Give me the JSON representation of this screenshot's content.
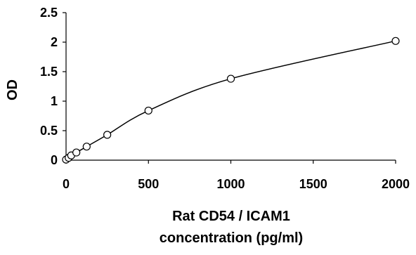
{
  "chart_data": {
    "type": "scatter",
    "title": "",
    "ylabel": "OD",
    "xlabel_lines": [
      "Rat CD54 / ICAM1",
      "concentration (pg/ml)"
    ],
    "xlim": [
      0,
      2000
    ],
    "ylim": [
      0,
      2.5
    ],
    "x_ticks": [
      0,
      500,
      1000,
      1500,
      2000
    ],
    "x_tick_labels": [
      "0",
      "500",
      "1000",
      "1500",
      "2000"
    ],
    "y_ticks": [
      0,
      0.5,
      1,
      1.5,
      2,
      2.5
    ],
    "y_tick_labels": [
      "0",
      "0.5",
      "1",
      "1.5",
      "2",
      "2.5"
    ],
    "grid": false,
    "legend": "none",
    "marker": "open-circle",
    "fit": "smooth-curve",
    "color": "#000000",
    "series": [
      {
        "x": [
          0,
          15.6,
          31.25,
          62.5,
          125,
          250,
          500,
          1000,
          2000
        ],
        "y": [
          0.01,
          0.04,
          0.08,
          0.13,
          0.23,
          0.43,
          0.84,
          1.38,
          2.02
        ]
      }
    ]
  }
}
